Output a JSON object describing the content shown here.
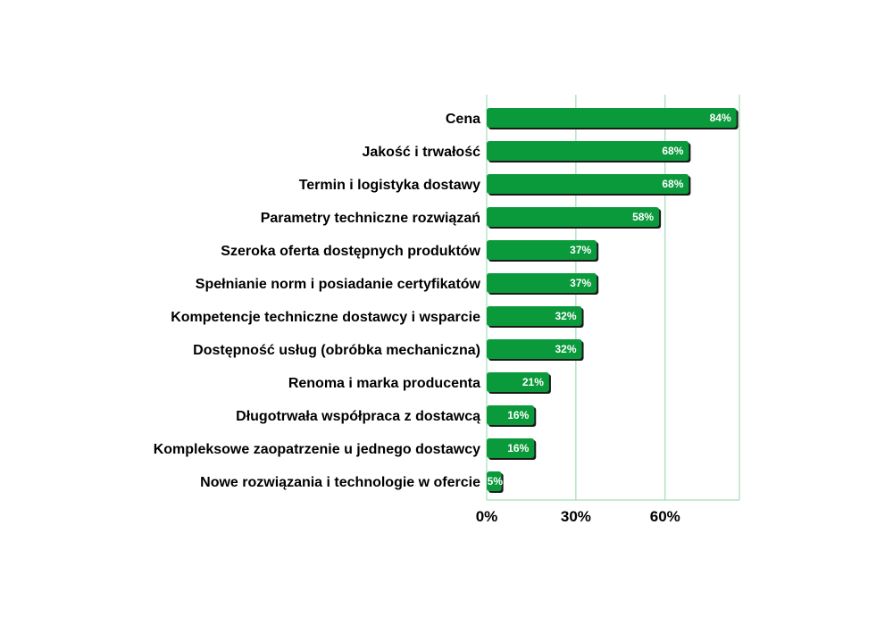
{
  "chart_data": {
    "type": "bar",
    "orientation": "horizontal",
    "categories": [
      "Cena",
      "Jakość i trwałość",
      "Termin i logistyka dostawy",
      "Parametry techniczne rozwiązań",
      "Szeroka oferta dostępnych produktów",
      "Spełnianie norm i posiadanie certyfikatów",
      "Kompetencje techniczne dostawcy i wsparcie",
      "Dostępność usług (obróbka mechaniczna)",
      "Renoma i marka producenta",
      "Długotrwała współpraca z dostawcą",
      "Kompleksowe zaopatrzenie u jednego dostawcy",
      "Nowe rozwiązania i technologie w ofercie"
    ],
    "values": [
      84,
      68,
      68,
      58,
      37,
      37,
      32,
      32,
      21,
      16,
      16,
      5
    ],
    "value_labels": [
      "84%",
      "68%",
      "68%",
      "58%",
      "37%",
      "37%",
      "32%",
      "32%",
      "21%",
      "16%",
      "16%",
      "5%"
    ],
    "x_ticks": [
      0,
      30,
      60
    ],
    "x_tick_labels": [
      "0%",
      "30%",
      "60%"
    ],
    "xlim": [
      0,
      85
    ],
    "grid": true,
    "colors": {
      "bar": "#0a9a3c",
      "bar_shadow": "#1a1a1a",
      "grid": "#8fd8a6"
    }
  }
}
